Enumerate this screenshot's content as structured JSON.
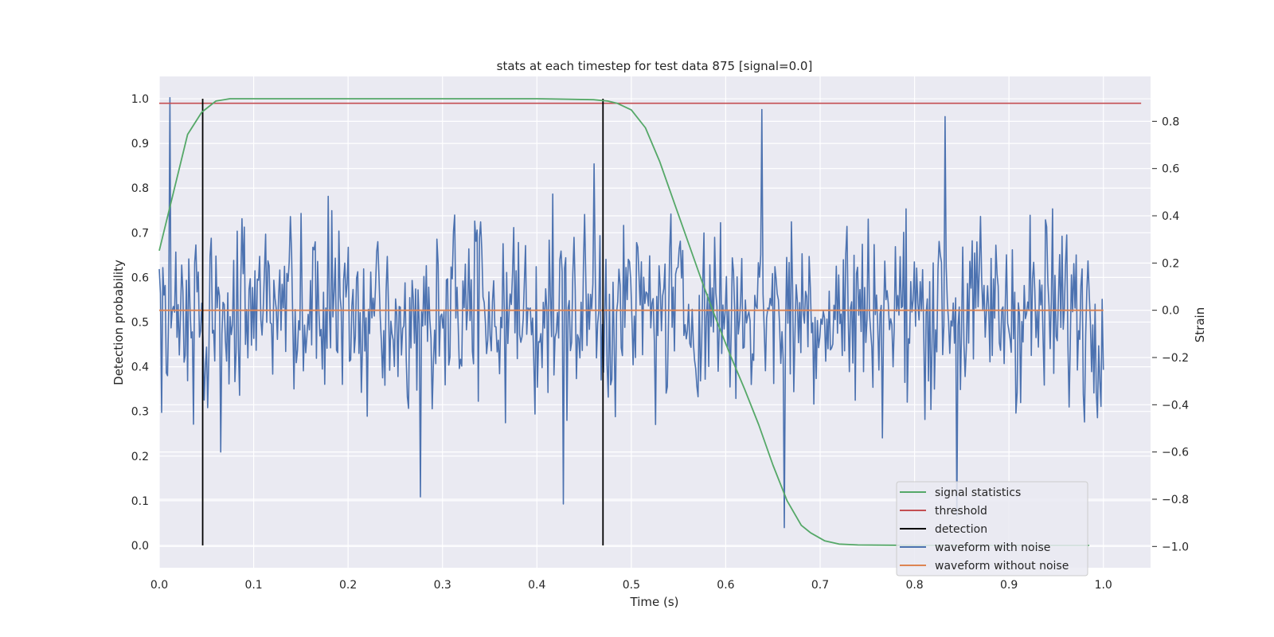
{
  "chart_data": {
    "type": "line",
    "title": "stats at each timestep for test data 875 [signal=0.0]",
    "xlabel": "Time (s)",
    "ylabel_left": "Detection probability",
    "ylabel_right": "Strain",
    "xlim": [
      0.0,
      1.05
    ],
    "ylim_left": [
      -0.05,
      1.05
    ],
    "ylim_right": [
      -1.09,
      0.99
    ],
    "xticks": [
      "0.0",
      "0.1",
      "0.2",
      "0.3",
      "0.4",
      "0.5",
      "0.6",
      "0.7",
      "0.8",
      "0.9",
      "1.0"
    ],
    "xtick_values": [
      0.0,
      0.1,
      0.2,
      0.3,
      0.4,
      0.5,
      0.6,
      0.7,
      0.8,
      0.9,
      1.0
    ],
    "yticks_left": [
      "0.0",
      "0.1",
      "0.2",
      "0.3",
      "0.4",
      "0.5",
      "0.6",
      "0.7",
      "0.8",
      "0.9",
      "1.0"
    ],
    "ytick_values_left": [
      0.0,
      0.1,
      0.2,
      0.3,
      0.4,
      0.5,
      0.6,
      0.7,
      0.8,
      0.9,
      1.0
    ],
    "yticks_right": [
      "−1.0",
      "−0.8",
      "−0.6",
      "−0.4",
      "−0.2",
      "0.0",
      "0.2",
      "0.4",
      "0.6",
      "0.8"
    ],
    "ytick_values_right": [
      -1.0,
      -0.8,
      -0.6,
      -0.4,
      -0.2,
      0.0,
      0.2,
      0.4,
      0.6,
      0.8
    ],
    "grid": true,
    "legend_position": "lower-right",
    "series": [
      {
        "name": "signal statistics",
        "axis": "left",
        "color": "#55a868",
        "x": [
          0.0,
          0.015,
          0.03,
          0.045,
          0.06,
          0.075,
          0.1,
          0.2,
          0.3,
          0.4,
          0.46,
          0.475,
          0.485,
          0.5,
          0.515,
          0.53,
          0.545,
          0.56,
          0.575,
          0.59,
          0.605,
          0.62,
          0.635,
          0.65,
          0.665,
          0.68,
          0.69,
          0.705,
          0.72,
          0.74,
          0.8,
          0.9,
          0.985
        ],
        "y": [
          0.66,
          0.79,
          0.92,
          0.97,
          0.995,
          1.0,
          1.0,
          1.0,
          1.0,
          1.0,
          0.998,
          0.995,
          0.99,
          0.975,
          0.935,
          0.86,
          0.77,
          0.68,
          0.59,
          0.505,
          0.425,
          0.35,
          0.27,
          0.18,
          0.1,
          0.045,
          0.028,
          0.01,
          0.003,
          0.001,
          0.0,
          0.0,
          0.0
        ]
      },
      {
        "name": "threshold",
        "axis": "left",
        "color": "#c44e52",
        "x": [
          0.0,
          1.04
        ],
        "y": [
          0.99,
          0.99
        ]
      },
      {
        "name": "detection",
        "axis": "left",
        "color": "#000000",
        "x_values": [
          0.046,
          0.47
        ],
        "y_range": [
          0.0,
          1.0
        ]
      },
      {
        "name": "waveform with noise",
        "axis": "right",
        "color": "#4c72b0",
        "x_range": [
          0.0,
          1.0
        ],
        "points": 800,
        "amplitude": 0.28,
        "spikes": [
          {
            "x": 0.011,
            "y": 0.9
          },
          {
            "x": 0.065,
            "y": -0.6
          },
          {
            "x": 0.277,
            "y": -0.79
          },
          {
            "x": 0.428,
            "y": -0.82
          },
          {
            "x": 0.46,
            "y": 0.62
          },
          {
            "x": 0.638,
            "y": 0.85
          },
          {
            "x": 0.662,
            "y": -0.92
          },
          {
            "x": 0.832,
            "y": 0.82
          },
          {
            "x": 0.845,
            "y": -0.87
          },
          {
            "x": 0.99,
            "y": -0.35
          }
        ]
      },
      {
        "name": "waveform without noise",
        "axis": "right",
        "color": "#dd8452",
        "x": [
          0.0,
          1.0
        ],
        "y": [
          0.0,
          0.0
        ]
      }
    ]
  }
}
